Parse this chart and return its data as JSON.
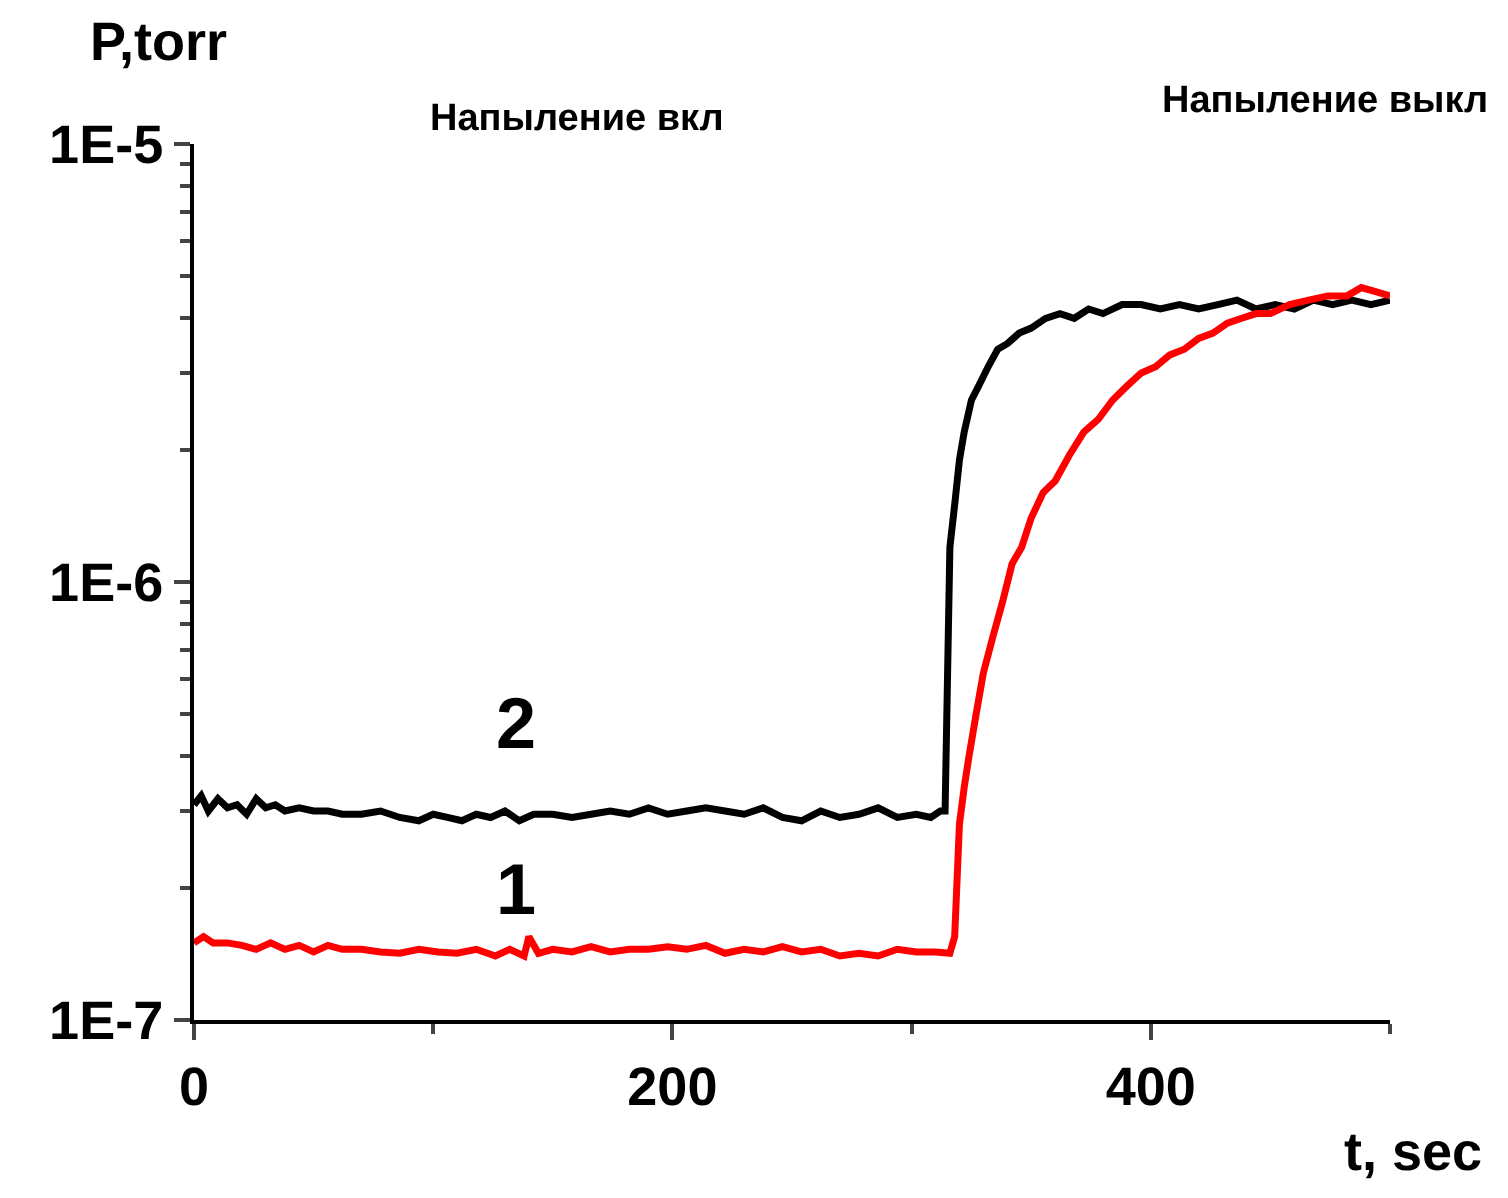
{
  "chart_data": {
    "type": "line",
    "xlabel": "t, sec",
    "ylabel": "P,torr",
    "log": "y",
    "xlim": [
      0,
      500
    ],
    "xticks": [
      0,
      200,
      400
    ],
    "ylim": [
      1e-07,
      1e-05
    ],
    "yticks": [
      {
        "value": 1e-07,
        "label": "1E-7"
      },
      {
        "value": 1e-06,
        "label": "1E-6"
      },
      {
        "value": 1e-05,
        "label": "1E-5"
      }
    ],
    "marker": "none",
    "line_style": "solid",
    "annotations": [
      "Напыление вкл",
      "Напыление выкл",
      "2",
      "1"
    ],
    "series": [
      {
        "color": "#000000",
        "x": [
          0,
          3,
          6,
          10,
          14,
          18,
          22,
          26,
          30,
          34,
          38,
          44,
          50,
          56,
          62,
          70,
          78,
          86,
          94,
          100,
          106,
          112,
          118,
          124,
          130,
          136,
          142,
          150,
          158,
          166,
          174,
          182,
          190,
          198,
          206,
          214,
          222,
          230,
          238,
          246,
          254,
          262,
          270,
          278,
          286,
          294,
          302,
          308,
          312,
          314,
          316,
          318,
          320,
          322,
          325,
          328,
          332,
          336,
          340,
          345,
          350,
          356,
          362,
          368,
          374,
          380,
          388,
          396,
          404,
          412,
          420,
          428,
          436,
          444,
          452,
          460,
          468,
          476,
          484,
          492,
          500
        ],
        "values": [
          3.1e-07,
          3.25e-07,
          3e-07,
          3.2e-07,
          3.05e-07,
          3.1e-07,
          2.95e-07,
          3.2e-07,
          3.05e-07,
          3.1e-07,
          3e-07,
          3.05e-07,
          3e-07,
          3e-07,
          2.95e-07,
          2.95e-07,
          3e-07,
          2.9e-07,
          2.85e-07,
          2.95e-07,
          2.9e-07,
          2.85e-07,
          2.95e-07,
          2.9e-07,
          3e-07,
          2.85e-07,
          2.95e-07,
          2.95e-07,
          2.9e-07,
          2.95e-07,
          3e-07,
          2.95e-07,
          3.05e-07,
          2.95e-07,
          3e-07,
          3.05e-07,
          3e-07,
          2.95e-07,
          3.05e-07,
          2.9e-07,
          2.85e-07,
          3e-07,
          2.9e-07,
          2.95e-07,
          3.05e-07,
          2.9e-07,
          2.95e-07,
          2.9e-07,
          3e-07,
          3e-07,
          1.2e-06,
          1.5e-06,
          1.9e-06,
          2.2e-06,
          2.6e-06,
          2.8e-06,
          3.1e-06,
          3.4e-06,
          3.5e-06,
          3.7e-06,
          3.8e-06,
          4e-06,
          4.1e-06,
          4e-06,
          4.2e-06,
          4.1e-06,
          4.3e-06,
          4.3e-06,
          4.2e-06,
          4.3e-06,
          4.2e-06,
          4.3e-06,
          4.4e-06,
          4.2e-06,
          4.3e-06,
          4.2e-06,
          4.4e-06,
          4.3e-06,
          4.4e-06,
          4.3e-06,
          4.4e-06
        ]
      },
      {
        "color": "#ff0000",
        "x": [
          0,
          4,
          8,
          14,
          20,
          26,
          32,
          38,
          44,
          50,
          56,
          62,
          70,
          78,
          86,
          94,
          102,
          110,
          118,
          126,
          132,
          138,
          140,
          144,
          150,
          158,
          166,
          174,
          182,
          190,
          198,
          206,
          214,
          222,
          230,
          238,
          246,
          254,
          262,
          270,
          278,
          286,
          294,
          302,
          310,
          316,
          318,
          320,
          322,
          324,
          327,
          330,
          334,
          338,
          342,
          346,
          350,
          355,
          360,
          366,
          372,
          378,
          384,
          390,
          396,
          402,
          408,
          414,
          420,
          426,
          432,
          438,
          444,
          450,
          458,
          466,
          474,
          482,
          488,
          494,
          500
        ],
        "values": [
          1.5e-07,
          1.55e-07,
          1.5e-07,
          1.5e-07,
          1.48e-07,
          1.45e-07,
          1.5e-07,
          1.45e-07,
          1.48e-07,
          1.43e-07,
          1.48e-07,
          1.45e-07,
          1.45e-07,
          1.43e-07,
          1.42e-07,
          1.45e-07,
          1.43e-07,
          1.42e-07,
          1.45e-07,
          1.4e-07,
          1.45e-07,
          1.4e-07,
          1.55e-07,
          1.42e-07,
          1.45e-07,
          1.43e-07,
          1.47e-07,
          1.43e-07,
          1.45e-07,
          1.45e-07,
          1.47e-07,
          1.45e-07,
          1.48e-07,
          1.42e-07,
          1.45e-07,
          1.43e-07,
          1.47e-07,
          1.43e-07,
          1.45e-07,
          1.4e-07,
          1.42e-07,
          1.4e-07,
          1.45e-07,
          1.43e-07,
          1.43e-07,
          1.42e-07,
          1.55e-07,
          2.8e-07,
          3.4e-07,
          4e-07,
          5e-07,
          6.2e-07,
          7.5e-07,
          9e-07,
          1.1e-06,
          1.2e-06,
          1.4e-06,
          1.6e-06,
          1.7e-06,
          1.95e-06,
          2.2e-06,
          2.35e-06,
          2.6e-06,
          2.8e-06,
          3e-06,
          3.1e-06,
          3.3e-06,
          3.4e-06,
          3.6e-06,
          3.7e-06,
          3.9e-06,
          4e-06,
          4.1e-06,
          4.1e-06,
          4.3e-06,
          4.4e-06,
          4.5e-06,
          4.5e-06,
          4.7e-06,
          4.6e-06,
          4.5e-06
        ]
      }
    ]
  }
}
